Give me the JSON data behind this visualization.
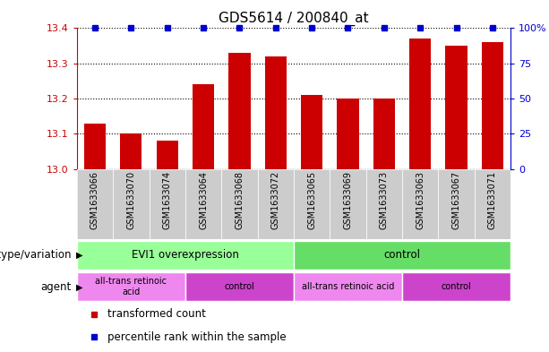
{
  "title": "GDS5614 / 200840_at",
  "samples": [
    "GSM1633066",
    "GSM1633070",
    "GSM1633074",
    "GSM1633064",
    "GSM1633068",
    "GSM1633072",
    "GSM1633065",
    "GSM1633069",
    "GSM1633073",
    "GSM1633063",
    "GSM1633067",
    "GSM1633071"
  ],
  "transformed_counts": [
    13.13,
    13.1,
    13.08,
    13.24,
    13.33,
    13.32,
    13.21,
    13.2,
    13.2,
    13.37,
    13.35,
    13.36
  ],
  "ylim": [
    13.0,
    13.4
  ],
  "yticks": [
    13.0,
    13.1,
    13.2,
    13.3,
    13.4
  ],
  "y2ticks": [
    0,
    25,
    50,
    75,
    100
  ],
  "y2labels": [
    "0",
    "25",
    "50",
    "75",
    "100%"
  ],
  "bar_color": "#cc0000",
  "dot_color": "#0000cc",
  "bar_width": 0.6,
  "sample_bg_color": "#cccccc",
  "genotype_groups": [
    {
      "label": "EVI1 overexpression",
      "start": 0,
      "end": 6,
      "color": "#99ff99"
    },
    {
      "label": "control",
      "start": 6,
      "end": 12,
      "color": "#66dd66"
    }
  ],
  "agent_groups": [
    {
      "label": "all-trans retinoic\nacid",
      "start": 0,
      "end": 3,
      "color": "#ee88ee"
    },
    {
      "label": "control",
      "start": 3,
      "end": 6,
      "color": "#cc44cc"
    },
    {
      "label": "all-trans retinoic acid",
      "start": 6,
      "end": 9,
      "color": "#ee88ee"
    },
    {
      "label": "control",
      "start": 9,
      "end": 12,
      "color": "#cc44cc"
    }
  ],
  "legend_items": [
    {
      "label": "transformed count",
      "color": "#cc0000"
    },
    {
      "label": "percentile rank within the sample",
      "color": "#0000cc"
    }
  ],
  "row_labels": [
    "genotype/variation",
    "agent"
  ],
  "title_fontsize": 11,
  "tick_fontsize": 8,
  "annotation_fontsize": 8.5
}
